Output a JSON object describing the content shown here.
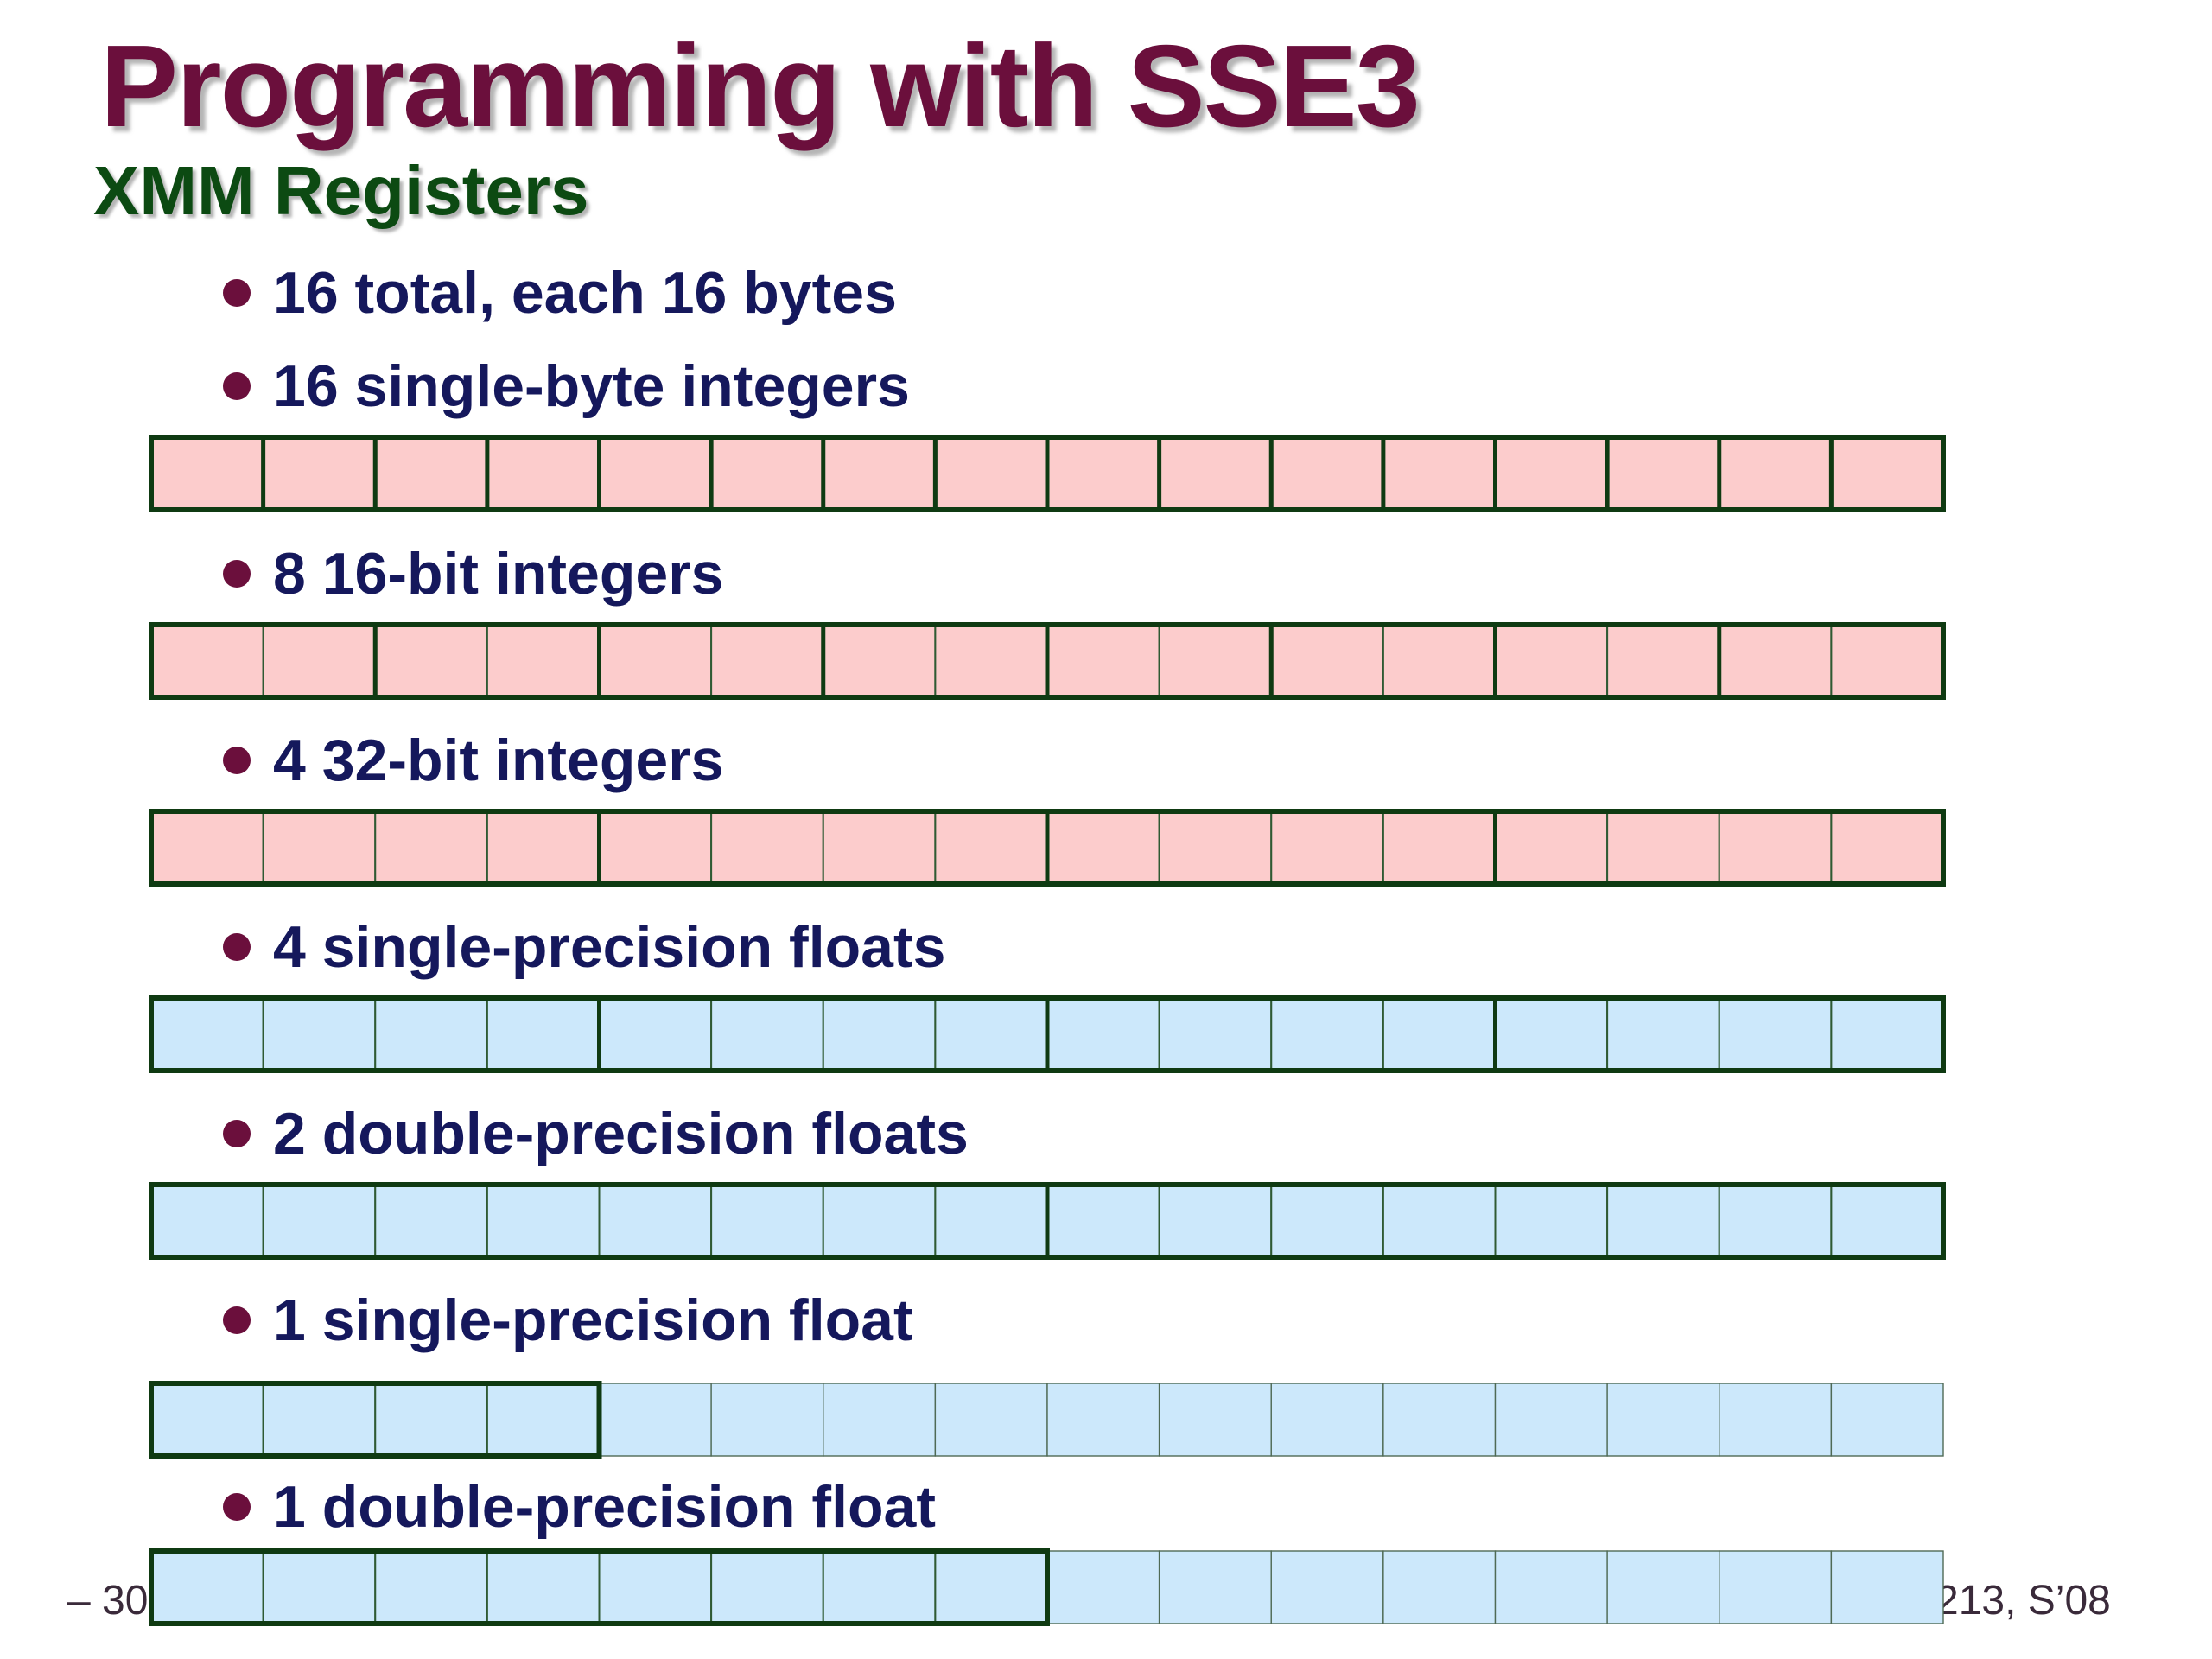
{
  "slide": {
    "title": "Programming with SSE3",
    "subtitle": "XMM Registers",
    "footer_left": "– 30",
    "footer_right": "213, S’08"
  },
  "bullets": [
    {
      "text": "16 total, each 16 bytes"
    },
    {
      "text": "16 single-byte integers",
      "register": {
        "lane_bytes": 1,
        "used_bytes": 16,
        "color": "pink"
      }
    },
    {
      "text": "8 16-bit integers",
      "register": {
        "lane_bytes": 2,
        "used_bytes": 16,
        "color": "pink"
      }
    },
    {
      "text": "4 32-bit integers",
      "register": {
        "lane_bytes": 4,
        "used_bytes": 16,
        "color": "pink"
      }
    },
    {
      "text": "4 single-precision floats",
      "register": {
        "lane_bytes": 4,
        "used_bytes": 16,
        "color": "blue"
      }
    },
    {
      "text": "2 double-precision floats",
      "register": {
        "lane_bytes": 8,
        "used_bytes": 16,
        "color": "blue"
      }
    },
    {
      "text": "1 single-precision float",
      "register": {
        "lane_bytes": 4,
        "used_bytes": 4,
        "color": "blue"
      }
    },
    {
      "text": "1 double-precision float",
      "register": {
        "lane_bytes": 8,
        "used_bytes": 8,
        "color": "blue"
      }
    }
  ],
  "colors": {
    "pink_fill": "#fccccc",
    "blue_fill": "#cce8fb",
    "border_dark": "#0f3a12",
    "cell_line": "#2f5a33",
    "faded_line": "#4f6a55"
  }
}
